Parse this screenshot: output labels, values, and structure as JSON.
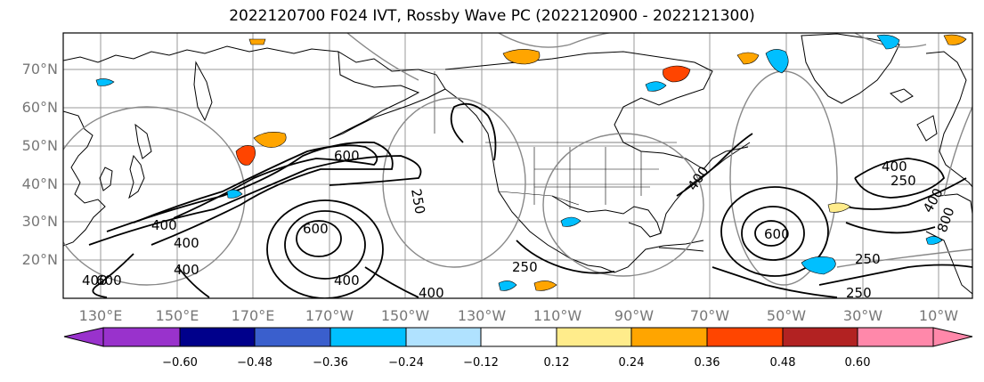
{
  "title": "2022120700 F024 IVT, Rossby Wave PC (2022120900 - 2022121300)",
  "lat_labels": [
    "70°N",
    "60°N",
    "50°N",
    "40°N",
    "30°N",
    "20°N"
  ],
  "lon_labels": [
    "130°E",
    "150°E",
    "170°E",
    "170°W",
    "150°W",
    "130°W",
    "110°W",
    "90°W",
    "70°W",
    "50°W",
    "30°W",
    "10°W"
  ],
  "ivt_contour_labels": [
    "400",
    "600",
    "250",
    "400",
    "400",
    "600",
    "400",
    "250",
    "400",
    "400",
    "600",
    "400",
    "250",
    "400",
    "250",
    "250",
    "400",
    "600",
    "800"
  ],
  "colorbar": {
    "ticks": [
      "−0.60",
      "−0.48",
      "−0.36",
      "−0.24",
      "−0.12",
      "0.12",
      "0.24",
      "0.36",
      "0.48",
      "0.60"
    ],
    "colors": [
      "#9932cc",
      "#00008b",
      "#3a5fcd",
      "#00bfff",
      "#b0e2ff",
      "#ffffff",
      "#ffec8b",
      "#ffa500",
      "#ff4500",
      "#b22222",
      "#ff88aa"
    ]
  },
  "colors": {
    "ivt_contour": "#000000",
    "pc_contour": "#888888",
    "coastline": "#000000",
    "grid": "#999999"
  }
}
